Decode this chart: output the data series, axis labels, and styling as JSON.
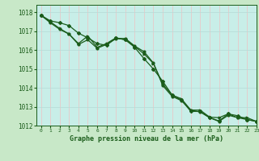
{
  "title": "Graphe pression niveau de la mer (hPa)",
  "background_color": "#c8e8c8",
  "plot_bg_color": "#c8eee8",
  "line_color": "#1a5c1a",
  "grid_color_v": "#e8c8c8",
  "grid_color_h": "#b8ddd8",
  "xlim": [
    -0.5,
    23
  ],
  "ylim": [
    1012,
    1018.4
  ],
  "xticks": [
    0,
    1,
    2,
    3,
    4,
    5,
    6,
    7,
    8,
    9,
    10,
    11,
    12,
    13,
    14,
    15,
    16,
    17,
    18,
    19,
    20,
    21,
    22,
    23
  ],
  "yticks": [
    1012,
    1013,
    1014,
    1015,
    1016,
    1017,
    1018
  ],
  "series": [
    [
      1017.85,
      1017.55,
      1017.45,
      1017.3,
      1016.9,
      1016.65,
      1016.35,
      1016.25,
      1016.65,
      1016.55,
      1016.15,
      1015.55,
      1015.0,
      1014.35,
      1013.62,
      1013.35,
      1012.75,
      1012.75,
      1012.42,
      1012.25,
      1012.62,
      1012.52,
      1012.32,
      1012.22
    ],
    [
      1017.85,
      1017.5,
      1017.15,
      1016.85,
      1016.35,
      1016.75,
      1016.15,
      1016.35,
      1016.65,
      1016.55,
      1016.2,
      1015.8,
      1015.3,
      1014.2,
      1013.62,
      1013.42,
      1012.82,
      1012.82,
      1012.45,
      1012.42,
      1012.62,
      1012.42,
      1012.42,
      1012.22
    ],
    [
      1017.85,
      1017.45,
      1017.1,
      1016.85,
      1016.3,
      1016.55,
      1016.1,
      1016.3,
      1016.6,
      1016.62,
      1016.22,
      1015.92,
      1015.32,
      1014.12,
      1013.55,
      1013.32,
      1012.82,
      1012.72,
      1012.42,
      1012.22,
      1012.55,
      1012.42,
      1012.32,
      1012.22
    ]
  ]
}
